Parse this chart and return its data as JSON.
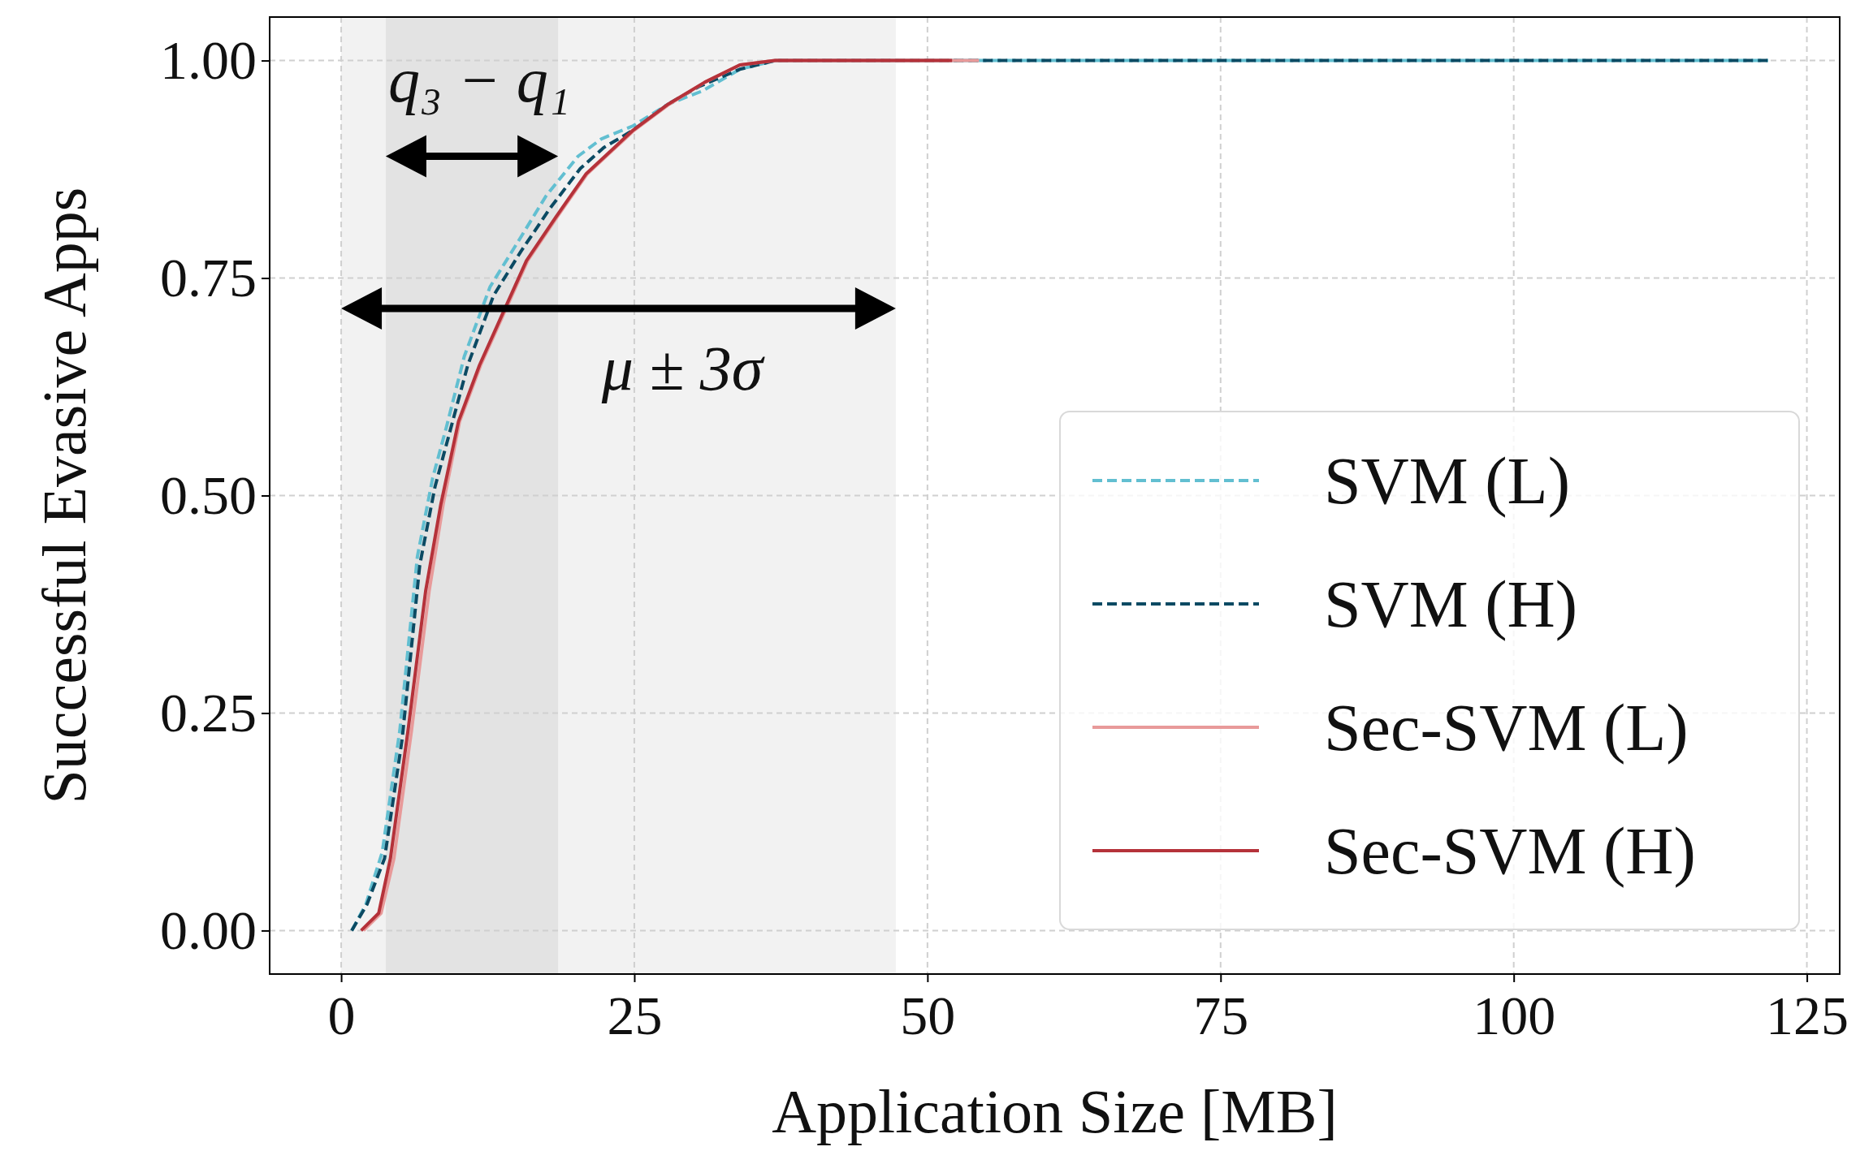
{
  "chart_data": {
    "type": "line",
    "xlabel": "Application Size [MB]",
    "ylabel": "Successful Evasive Apps",
    "xlim": [
      -6.1,
      127.8
    ],
    "ylim": [
      -0.05,
      1.05
    ],
    "xticks": [
      0,
      25,
      50,
      75,
      100,
      125
    ],
    "yticks": [
      {
        "value": 0,
        "label": "0.00"
      },
      {
        "value": 0.25,
        "label": "0.25"
      },
      {
        "value": 0.5,
        "label": "0.50"
      },
      {
        "value": 0.75,
        "label": "0.75"
      },
      {
        "value": 1,
        "label": "1.00"
      }
    ],
    "grid": true,
    "legend": "bottom right",
    "bands": [
      {
        "axis": "x",
        "from": 0,
        "to": 47.3,
        "color": "#f2f2f2"
      },
      {
        "axis": "x",
        "from": 3.8,
        "to": 18.5,
        "color": "#e3e3e3"
      }
    ],
    "annotations": [
      "q₃ − q₁",
      "μ ± 3σ"
    ],
    "series": [
      {
        "name": "SVM (L)",
        "color": "#62bfd1",
        "line_style": "dashed",
        "x": [
          0.9,
          2.1,
          3.5,
          5.0,
          6.5,
          7.8,
          9.0,
          10.5,
          12.7,
          15.0,
          17.5,
          20.2,
          22.2,
          24.9,
          27.9,
          30.8,
          34,
          37,
          50,
          121.7
        ],
        "values": [
          0,
          0.03,
          0.09,
          0.23,
          0.43,
          0.52,
          0.58,
          0.66,
          0.74,
          0.79,
          0.845,
          0.89,
          0.91,
          0.925,
          0.95,
          0.965,
          0.99,
          1,
          1,
          1
        ]
      },
      {
        "name": "SVM (H)",
        "color": "#0b4a63",
        "line_style": "dashed",
        "x": [
          0.9,
          2.2,
          3.7,
          5.2,
          6.7,
          8.0,
          9.2,
          10.8,
          13.0,
          15.3,
          17.8,
          20.4,
          22.4,
          24.9,
          27.9,
          30.5,
          34,
          37,
          50,
          121.7
        ],
        "values": [
          0,
          0.03,
          0.083,
          0.22,
          0.42,
          0.51,
          0.57,
          0.65,
          0.73,
          0.78,
          0.83,
          0.876,
          0.9,
          0.92,
          0.95,
          0.97,
          0.99,
          1,
          1,
          1
        ]
      },
      {
        "name": "Sec-SVM (L)",
        "color": "#e89a9a",
        "line_style": "solid",
        "x": [
          1.9,
          3.4,
          4.5,
          6.0,
          7.5,
          8.7,
          10.1,
          11.9,
          13.9,
          15.9,
          18.4,
          21.0,
          25.0,
          28.0,
          31.0,
          34.0,
          37,
          50,
          54.4
        ],
        "values": [
          0,
          0.02,
          0.083,
          0.23,
          0.39,
          0.49,
          0.585,
          0.65,
          0.71,
          0.77,
          0.82,
          0.87,
          0.92,
          0.95,
          0.975,
          0.995,
          1,
          1,
          1
        ]
      },
      {
        "name": "Sec-SVM (H)",
        "color": "#b5323a",
        "line_style": "solid",
        "x": [
          1.7,
          3.2,
          4.2,
          5.7,
          7.2,
          8.5,
          10.0,
          11.8,
          13.8,
          15.8,
          18.3,
          20.9,
          24.9,
          27.9,
          31.0,
          34.0,
          37,
          50,
          52.1
        ],
        "values": [
          0,
          0.02,
          0.083,
          0.23,
          0.39,
          0.49,
          0.585,
          0.65,
          0.71,
          0.77,
          0.82,
          0.87,
          0.92,
          0.95,
          0.975,
          0.995,
          1,
          1,
          1
        ]
      }
    ]
  }
}
